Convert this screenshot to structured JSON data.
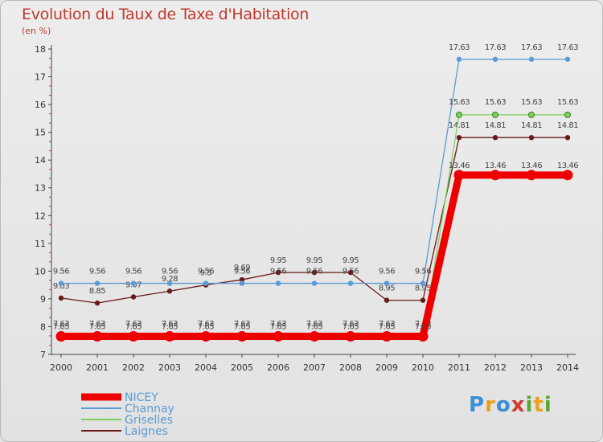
{
  "chart_data": {
    "type": "line",
    "title": "Evolution du Taux de Taxe d'Habitation",
    "subtitle": "(en %)",
    "x": [
      "2000",
      "2001",
      "2002",
      "2003",
      "2004",
      "2005",
      "2006",
      "2007",
      "2008",
      "2009",
      "2010",
      "2011",
      "2012",
      "2013",
      "2014"
    ],
    "ylim": [
      7,
      18
    ],
    "yticks": [
      7,
      8,
      9,
      10,
      11,
      12,
      13,
      14,
      15,
      16,
      17,
      18
    ],
    "grid": false,
    "legend_position": "bottom-left",
    "series": [
      {
        "name": "NICEY",
        "color": "#ee0000",
        "values": [
          7.65,
          7.65,
          7.65,
          7.65,
          7.65,
          7.65,
          7.65,
          7.65,
          7.65,
          7.65,
          7.65,
          13.46,
          13.46,
          13.46,
          13.46
        ],
        "labels": [
          "7.65",
          "7.65",
          "7.65",
          "7.65",
          "7.65",
          "7.65",
          "7.65",
          "7.65",
          "7.65",
          "7.65",
          "7.65",
          "13.46",
          "13.46",
          "13.46",
          "13.46"
        ]
      },
      {
        "name": "Channay",
        "color": "#5a9bd5",
        "values": [
          9.56,
          9.56,
          9.56,
          9.56,
          9.56,
          9.56,
          9.56,
          9.56,
          9.56,
          9.56,
          9.56,
          17.63,
          17.63,
          17.63,
          17.63
        ],
        "labels": [
          "9.56",
          "9.56",
          "9.56",
          "9.56",
          "9.56",
          "9.56",
          "9.56",
          "9.56",
          "9.56",
          "9.56",
          "9.56",
          "17.63",
          "17.63",
          "17.63",
          "17.63"
        ]
      },
      {
        "name": "Griselles",
        "color": "#7dd35a",
        "values": [
          7.63,
          7.63,
          7.63,
          7.63,
          7.63,
          7.63,
          7.63,
          7.63,
          7.63,
          7.63,
          7.63,
          15.63,
          15.63,
          15.63,
          15.63
        ],
        "labels": [
          "7.63",
          "7.63",
          "7.63",
          "7.63",
          "7.63",
          "7.63",
          "7.63",
          "7.63",
          "7.63",
          "7.63",
          "7.63",
          "15.63",
          "15.63",
          "15.63",
          "15.63"
        ]
      },
      {
        "name": "Laignes",
        "color": "#6b1a1a",
        "values": [
          9.03,
          8.85,
          9.07,
          9.28,
          9.5,
          9.69,
          9.95,
          9.95,
          9.95,
          8.95,
          8.95,
          14.81,
          14.81,
          14.81,
          14.81
        ],
        "labels": [
          "9.03",
          "8.85",
          "9.07",
          "9.28",
          "9.5",
          "9.69",
          "9.95",
          "9.95",
          "9.95",
          "8.95",
          "8.95",
          "14.81",
          "14.81",
          "14.81",
          "14.81"
        ]
      }
    ]
  }
}
